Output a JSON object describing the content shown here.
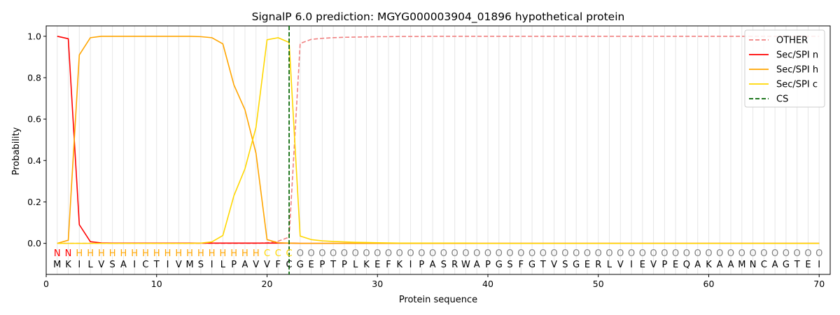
{
  "chart_data": {
    "type": "line",
    "title": "SignalP 6.0 prediction: MGYG000003904_01896 hypothetical protein",
    "xlabel": "Protein sequence",
    "ylabel": "Probability",
    "xlim": [
      0,
      71
    ],
    "ylim": [
      -0.15,
      1.05
    ],
    "xticks": [
      0,
      10,
      20,
      30,
      40,
      50,
      60,
      70
    ],
    "yticks": [
      0.0,
      0.2,
      0.4,
      0.6,
      0.8,
      1.0
    ],
    "grid": "vertical lines at each residue",
    "legend_position": "top-right",
    "sequence": "MKILVSAICTIVMSILPAVVFCGEPTPLKEFKIPASRWAPGSFGTVSGERLVIEVPEQAKAAMNCAGTEI",
    "predicted_labels": "NNHHHHHHHHHHHHHHHHHCCCOOOOOOOOOOOOOOOOOOOOOOOOOOOOOOOOOOOOOOOOOOOOOOOO",
    "label_colors": {
      "N": "#ff0000",
      "H": "#ffa500",
      "C": "#ffd700",
      "O": "#808080"
    },
    "cleavage_site": 22,
    "series": [
      {
        "name": "OTHER",
        "color": "#f08080",
        "dash": "dashed",
        "values": [
          0,
          0,
          0,
          0,
          0,
          0,
          0,
          0,
          0,
          0,
          0,
          0,
          0,
          0,
          0,
          0,
          0,
          0,
          0,
          0.003,
          0.01,
          0.03,
          0.965,
          0.985,
          0.99,
          0.993,
          0.995,
          0.996,
          0.997,
          0.998,
          0.998,
          0.999,
          0.999,
          0.999,
          1,
          1,
          1,
          1,
          1,
          1,
          1,
          1,
          1,
          1,
          1,
          1,
          1,
          1,
          1,
          1,
          1,
          1,
          1,
          1,
          1,
          1,
          1,
          1,
          1,
          1,
          1,
          1,
          1,
          1,
          1,
          1,
          1,
          1,
          1,
          1
        ]
      },
      {
        "name": "Sec/SPI n",
        "color": "#ff0000",
        "dash": "solid",
        "values": [
          1.0,
          0.988,
          0.09,
          0.008,
          0.002,
          0.001,
          0.001,
          0.001,
          0.001,
          0.001,
          0.001,
          0.001,
          0.001,
          0.001,
          0.001,
          0.001,
          0.001,
          0.001,
          0.001,
          0.001,
          0.001,
          0.001,
          0,
          0,
          0,
          0,
          0,
          0,
          0,
          0,
          0,
          0,
          0,
          0,
          0,
          0,
          0,
          0,
          0,
          0,
          0,
          0,
          0,
          0,
          0,
          0,
          0,
          0,
          0,
          0,
          0,
          0,
          0,
          0,
          0,
          0,
          0,
          0,
          0,
          0,
          0,
          0,
          0,
          0,
          0,
          0,
          0,
          0,
          0,
          0
        ]
      },
      {
        "name": "Sec/SPI h",
        "color": "#ffa500",
        "dash": "solid",
        "values": [
          0,
          0.015,
          0.91,
          0.993,
          1.0,
          1.0,
          1.0,
          1.0,
          1.0,
          1.0,
          1.0,
          1.0,
          1.0,
          0.998,
          0.993,
          0.963,
          0.765,
          0.645,
          0.435,
          0.018,
          0.003,
          0.001,
          0,
          0,
          0,
          0,
          0,
          0,
          0,
          0,
          0,
          0,
          0,
          0,
          0,
          0,
          0,
          0,
          0,
          0,
          0,
          0,
          0,
          0,
          0,
          0,
          0,
          0,
          0,
          0,
          0,
          0,
          0,
          0,
          0,
          0,
          0,
          0,
          0,
          0,
          0,
          0,
          0,
          0,
          0,
          0,
          0,
          0,
          0,
          0
        ]
      },
      {
        "name": "Sec/SPI c",
        "color": "#ffd700",
        "dash": "solid",
        "values": [
          0,
          0,
          0,
          0,
          0,
          0,
          0,
          0,
          0,
          0,
          0,
          0,
          0,
          0.001,
          0.007,
          0.038,
          0.23,
          0.36,
          0.56,
          0.983,
          0.993,
          0.97,
          0.035,
          0.018,
          0.012,
          0.009,
          0.007,
          0.005,
          0.004,
          0.003,
          0.002,
          0.001,
          0.001,
          0.001,
          0.001,
          0.001,
          0.001,
          0.001,
          0,
          0,
          0,
          0,
          0,
          0,
          0,
          0,
          0,
          0,
          0,
          0,
          0,
          0,
          0,
          0,
          0,
          0,
          0,
          0,
          0,
          0,
          0,
          0,
          0,
          0,
          0,
          0,
          0,
          0,
          0,
          0
        ]
      },
      {
        "name": "CS",
        "color": "#006400",
        "dash": "dashed",
        "x": 22
      }
    ]
  }
}
